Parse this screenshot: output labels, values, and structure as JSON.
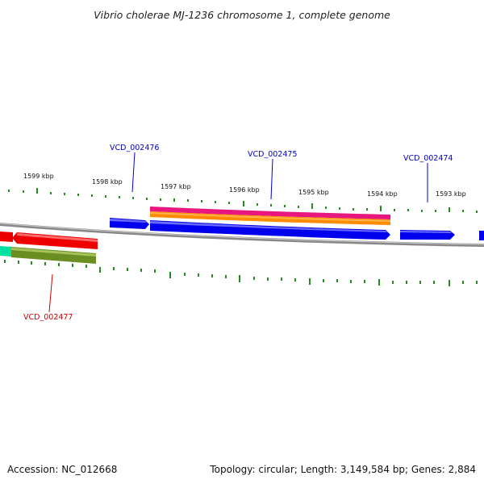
{
  "title": "Vibrio cholerae MJ-1236 chromosome 1, complete genome",
  "footer": {
    "accession": "Accession: NC_012668",
    "summary": "Topology: circular; Length: 3,149,584 bp; Genes: 2,884"
  },
  "ruler_ticks": [
    {
      "label": "1599 kbp"
    },
    {
      "label": "1598 kbp"
    },
    {
      "label": "1597 kbp"
    },
    {
      "label": "1596 kbp"
    },
    {
      "label": "1595 kbp"
    },
    {
      "label": "1594 kbp"
    },
    {
      "label": "1593 kbp"
    }
  ],
  "gene_labels": [
    {
      "id": "VCD_002476",
      "color": "#0000cc"
    },
    {
      "id": "VCD_002475",
      "color": "#0000cc"
    },
    {
      "id": "VCD_002474",
      "color": "#0000cc"
    },
    {
      "id": "VCD_002477",
      "color": "#cc0000"
    }
  ],
  "colors": {
    "forward_gene": "#0000ee",
    "reverse_gene": "#ee0000",
    "backbone": "#888888",
    "tick": "#228b22",
    "cds_magenta": "#e8177f",
    "cds_orange": "#ff8c00",
    "cds_olive": "#6b8e23",
    "cds_cyan": "#00e0a0"
  }
}
